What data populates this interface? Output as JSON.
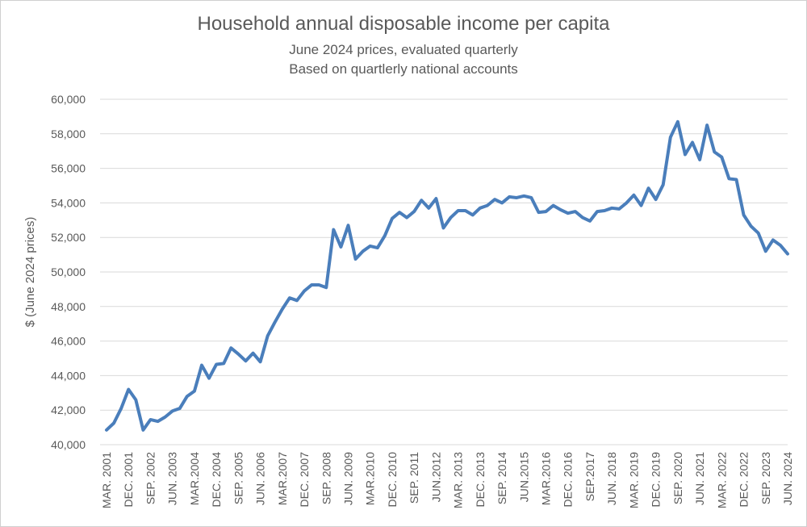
{
  "chart_data": {
    "type": "line",
    "title": "Household annual disposable income per capita",
    "subtitle": "June 2024 prices, evaluated quarterly",
    "subtitle2": "Based on quartlerly national accounts",
    "xlabel": "",
    "ylabel": "$ (June 2024 prices)",
    "ylim": [
      40000,
      60000
    ],
    "yticks": [
      40000,
      42000,
      44000,
      46000,
      48000,
      50000,
      52000,
      54000,
      56000,
      58000,
      60000
    ],
    "ytick_labels": [
      "40,000",
      "42,000",
      "44,000",
      "46,000",
      "48,000",
      "50,000",
      "52,000",
      "54,000",
      "56,000",
      "58,000",
      "60,000"
    ],
    "grid": true,
    "color": "#4a7ebb",
    "x_start": "Mar 2001",
    "x_end": "Jun 2024",
    "xtick_labels": [
      "MAR. 2001",
      "DEC. 2001",
      "SEP. 2002",
      "JUN. 2003",
      "MAR.2004",
      "DEC. 2004",
      "SEP. 2005",
      "JUN. 2006",
      "MAR.2007",
      "DEC. 2007",
      "SEP. 2008",
      "JUN. 2009",
      "MAR.2010",
      "DEC. 2010",
      "SEP. 2011",
      "JUN.2012",
      "MAR. 2013",
      "DEC. 2013",
      "SEP. 2014",
      "JUN.2015",
      "MAR.2016",
      "DEC. 2016",
      "SEP.2017",
      "JUN. 2018",
      "MAR. 2019",
      "DEC. 2019",
      "SEP. 2020",
      "JUN. 2021",
      "MAR. 2022",
      "DEC. 2022",
      "SEP. 2023",
      "JUN. 2024"
    ],
    "series": [
      {
        "values": [
          40850,
          41250,
          42100,
          43200,
          42600,
          40850,
          41450,
          41350,
          41600,
          41950,
          42100,
          42800,
          43100,
          44600,
          43850,
          44650,
          44700,
          45600,
          45250,
          44850,
          45300,
          44800,
          46300,
          47100,
          47850,
          48500,
          48350,
          48900,
          49250,
          49250,
          49100,
          52450,
          51450,
          52700,
          50750,
          51200,
          51500,
          51400,
          52100,
          53100,
          53450,
          53150,
          53500,
          54150,
          53700,
          54250,
          52550,
          53150,
          53550,
          53550,
          53300,
          53700,
          53850,
          54200,
          54000,
          54350,
          54300,
          54400,
          54300,
          53450,
          53500,
          53850,
          53600,
          53400,
          53500,
          53150,
          52950,
          53500,
          53550,
          53700,
          53650,
          54000,
          54450,
          53850,
          54850,
          54200,
          55050,
          57800,
          58700,
          56800,
          57500,
          56500,
          58500,
          56950,
          56650,
          55400,
          55350,
          53300,
          52650,
          52250,
          51200,
          51850,
          51550,
          51050
        ]
      }
    ]
  }
}
